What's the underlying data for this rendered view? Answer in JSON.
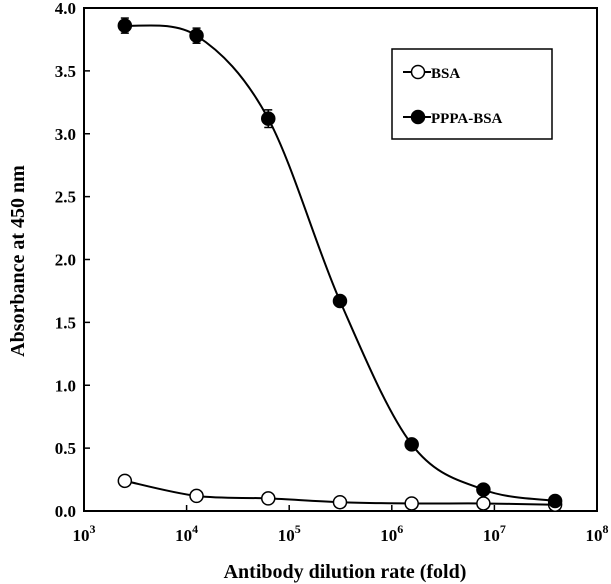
{
  "chart_data": {
    "type": "scatter",
    "title": "",
    "xlabel": "Antibody dilution rate (fold)",
    "ylabel": "Absorbance at 450 nm",
    "x_scale": "log10",
    "xlim": [
      1000,
      100000000
    ],
    "ylim": [
      0,
      4.0
    ],
    "x_ticks": [
      {
        "base": "10",
        "exp": "3"
      },
      {
        "base": "10",
        "exp": "4"
      },
      {
        "base": "10",
        "exp": "5"
      },
      {
        "base": "10",
        "exp": "6"
      },
      {
        "base": "10",
        "exp": "7"
      },
      {
        "base": "10",
        "exp": "8"
      }
    ],
    "y_ticks": [
      "0.0",
      "0.5",
      "1.0",
      "1.5",
      "2.0",
      "2.5",
      "3.0",
      "3.5",
      "4.0"
    ],
    "grid": false,
    "legend_position": "top-right",
    "series": [
      {
        "name": "BSA",
        "marker": "open-circle",
        "x": [
          2500,
          12500,
          62500,
          312500,
          1562500,
          7812500,
          39062500
        ],
        "y": [
          0.24,
          0.12,
          0.1,
          0.07,
          0.06,
          0.06,
          0.05
        ],
        "err": [
          0,
          0,
          0,
          0,
          0,
          0,
          0
        ]
      },
      {
        "name": "PPPA-BSA",
        "marker": "filled-circle",
        "x": [
          2500,
          12500,
          62500,
          312500,
          1562500,
          7812500,
          39062500
        ],
        "y": [
          3.86,
          3.78,
          3.12,
          1.67,
          0.53,
          0.17,
          0.08
        ],
        "err": [
          0.06,
          0.06,
          0.07,
          0,
          0,
          0,
          0
        ]
      }
    ]
  }
}
